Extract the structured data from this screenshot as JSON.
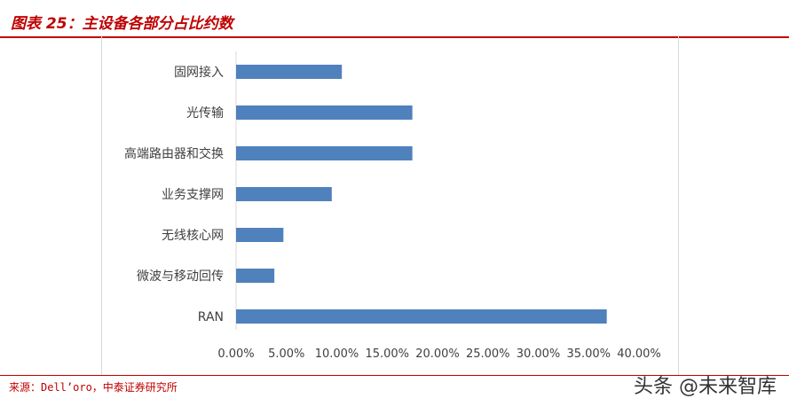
{
  "header": {
    "title": "图表 25：主设备各部分占比约数"
  },
  "footer": {
    "source": "来源：Dell’oro，中泰证券研究所"
  },
  "watermark": {
    "text": "头条 @未来智库"
  },
  "colors": {
    "bar": "#4f81bd",
    "accent": "#c00000",
    "axis": "#d9d9d9"
  },
  "chart_data": {
    "type": "bar",
    "orientation": "horizontal",
    "title": "",
    "xlabel": "",
    "ylabel": "",
    "categories": [
      "固网接入",
      "光传输",
      "高端路由器和交换",
      "业务支撑网",
      "无线核心网",
      "微波与移动回传",
      "RAN"
    ],
    "values": [
      10.5,
      17.5,
      17.5,
      9.5,
      4.7,
      3.8,
      36.8
    ],
    "xlim": [
      0,
      40
    ],
    "xticks": [
      0,
      5,
      10,
      15,
      20,
      25,
      30,
      35,
      40
    ],
    "xtick_labels": [
      "0.00%",
      "5.00%",
      "10.00%",
      "15.00%",
      "20.00%",
      "25.00%",
      "30.00%",
      "35.00%",
      "40.00%"
    ],
    "grid": false,
    "legend": "none"
  }
}
